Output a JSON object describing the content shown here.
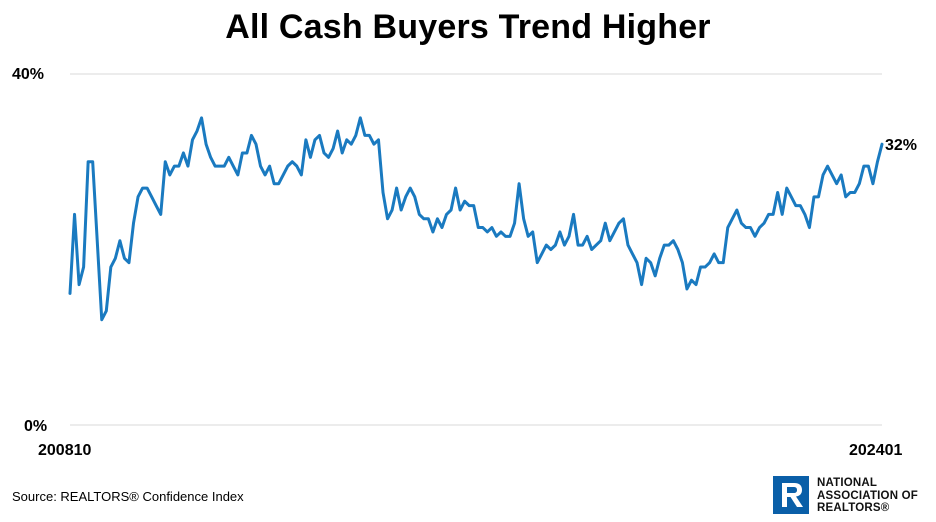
{
  "title": "All Cash Buyers Trend Higher",
  "source": "Source: REALTORS® Confidence Index",
  "logo": {
    "lines": [
      "NATIONAL",
      "ASSOCIATION OF",
      "REALTORS®"
    ],
    "color": "#0a5fa8"
  },
  "chart_data": {
    "type": "line",
    "title": "All Cash Buyers Trend Higher",
    "xlabel": "",
    "ylabel": "",
    "x_start": "200810",
    "x_end": "202401",
    "x_tick_labels": [
      "200810",
      "202401"
    ],
    "y_tick_labels": [
      "40%",
      "0%"
    ],
    "ylim": [
      0,
      40
    ],
    "grid": "horizontal gridline at 40% only",
    "line_color": "#1a7ac0",
    "end_label": "32%",
    "series": [
      {
        "values": [
          15,
          24,
          16,
          18,
          30,
          30,
          21,
          12,
          13,
          18,
          19,
          21,
          19,
          18.5,
          23,
          26,
          27,
          27,
          26,
          25,
          24,
          30,
          28.5,
          29.5,
          29.5,
          31,
          29.5,
          32.5,
          33.5,
          35,
          32,
          30.5,
          29.5,
          29.5,
          29.5,
          30.5,
          29.5,
          28.5,
          31,
          31,
          33,
          32,
          29.5,
          28.5,
          29.5,
          27.5,
          27.5,
          28.5,
          29.5,
          30,
          29.5,
          28.5,
          32.5,
          30.5,
          32.5,
          33,
          31,
          30.5,
          31.5,
          33.5,
          31,
          32.5,
          32,
          33,
          35,
          33,
          33,
          32,
          32.5,
          26.5,
          23.5,
          24.5,
          27,
          24.5,
          26,
          27,
          26,
          24,
          23.5,
          23.5,
          22,
          23.5,
          22.5,
          24,
          24.5,
          27,
          24.5,
          25.5,
          25,
          25,
          22.5,
          22.5,
          22,
          22.5,
          21.5,
          22,
          21.5,
          21.5,
          23,
          27.5,
          23.5,
          21.5,
          22,
          18.5,
          19.5,
          20.5,
          20,
          20.5,
          22,
          20.5,
          21.5,
          24,
          20.5,
          20.5,
          21.5,
          20,
          20.5,
          21,
          23,
          21,
          22,
          23,
          23.5,
          20.5,
          19.5,
          18.5,
          16,
          19,
          18.5,
          17,
          19,
          20.5,
          20.5,
          21,
          20,
          18.5,
          15.5,
          16.5,
          16,
          18,
          18,
          18.5,
          19.5,
          18.5,
          18.5,
          22.5,
          23.5,
          24.5,
          23,
          22.5,
          22.5,
          21.5,
          22.5,
          23,
          24,
          24,
          26.5,
          24,
          27,
          26,
          25,
          25,
          24,
          22.5,
          26,
          26,
          28.5,
          29.5,
          28.5,
          27.5,
          28.5,
          26,
          26.5,
          26.5,
          27.5,
          29.5,
          29.5,
          27.5,
          30,
          32
        ]
      }
    ]
  }
}
